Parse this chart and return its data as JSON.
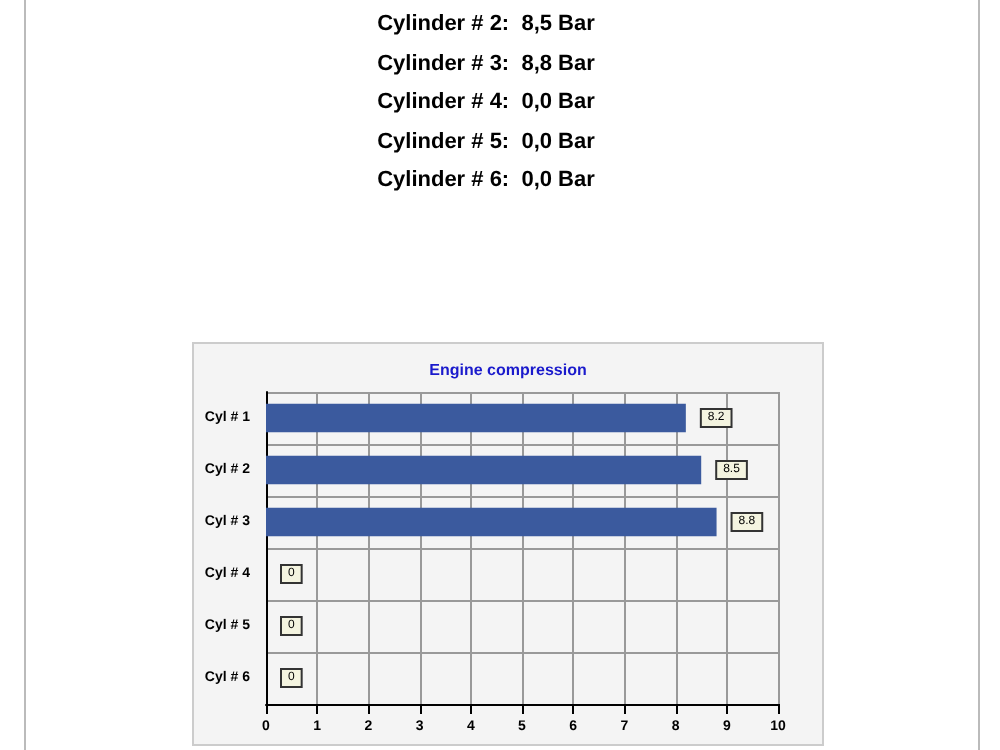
{
  "chart_data": {
    "type": "bar",
    "orientation": "horizontal",
    "title": "Engine compression",
    "annotations": [
      "Cylinder # 2:  8,5 Bar",
      "Cylinder # 3:  8,8 Bar",
      "Cylinder # 4:  0,0 Bar",
      "Cylinder # 5:  0,0 Bar",
      "Cylinder # 6:  0,0 Bar"
    ],
    "categories": [
      "Cyl # 1",
      "Cyl # 2",
      "Cyl # 3",
      "Cyl # 4",
      "Cyl # 5",
      "Cyl # 6"
    ],
    "values": [
      8.2,
      8.5,
      8.8,
      0,
      0,
      0
    ],
    "color": "#3b5a9e",
    "xlim": [
      0,
      10
    ],
    "xticks": [
      0,
      1,
      2,
      3,
      4,
      5,
      6,
      7,
      8,
      9,
      10
    ],
    "grid": true,
    "data_labels": true
  }
}
